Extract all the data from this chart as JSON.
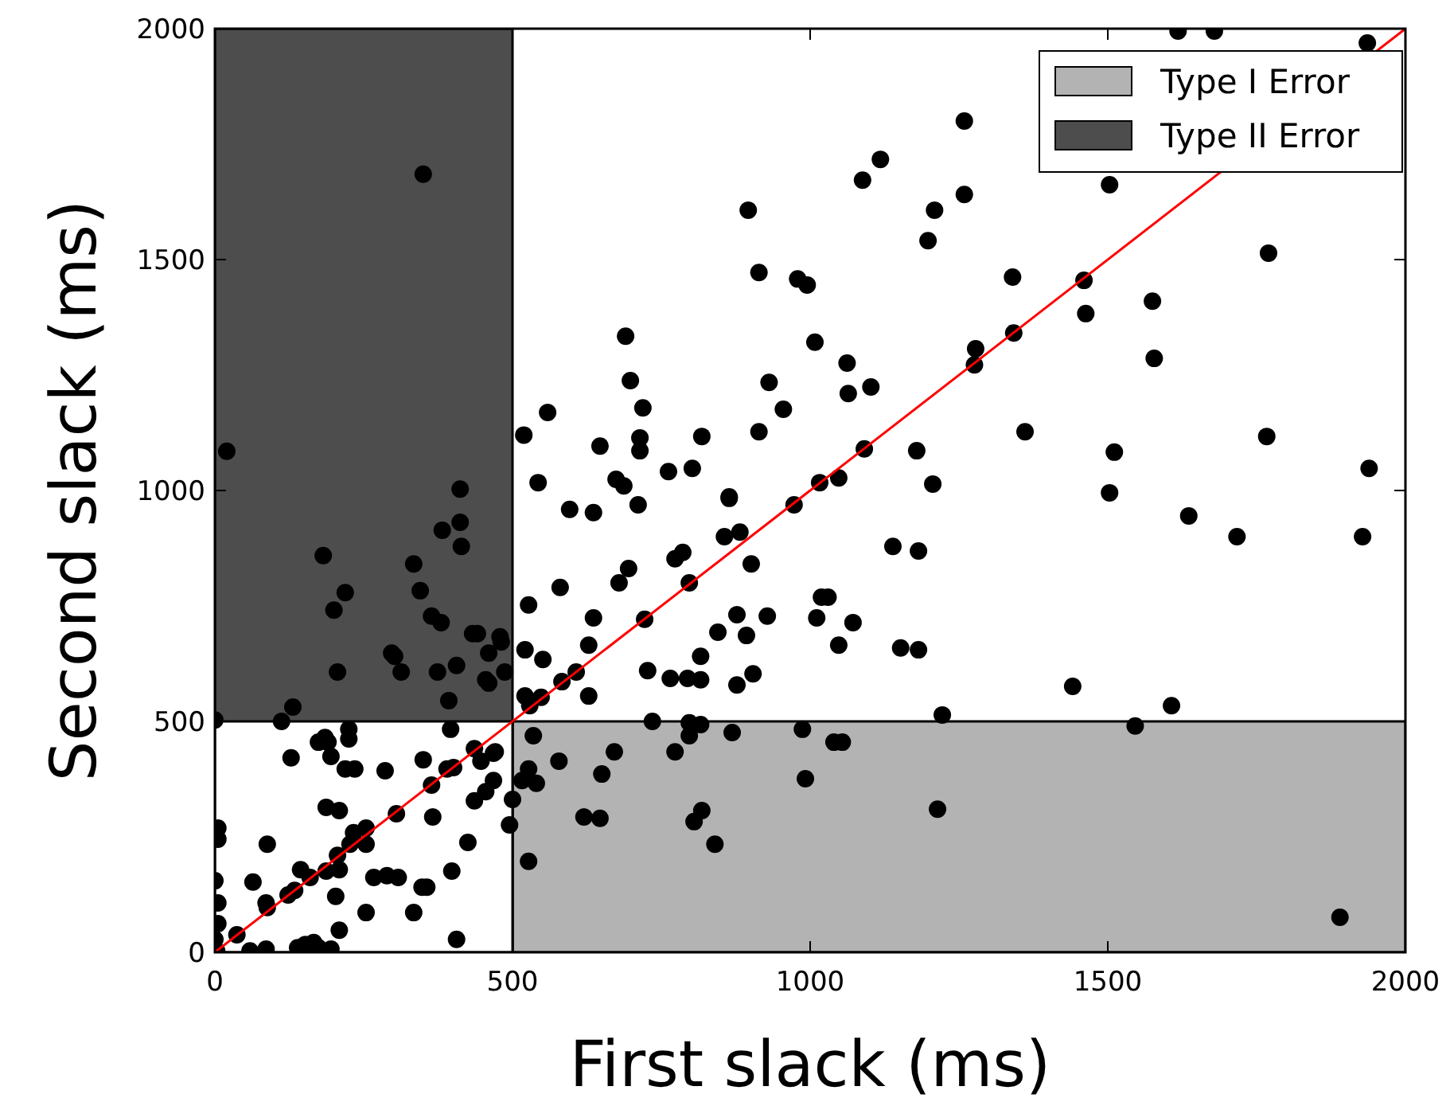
{
  "chart_data": {
    "type": "scatter",
    "xlabel": "First slack (ms)",
    "ylabel": "Second slack (ms)",
    "xlim": [
      0,
      2000
    ],
    "ylim": [
      0,
      2000
    ],
    "xticks": [
      0,
      500,
      1000,
      1500,
      2000
    ],
    "yticks": [
      0,
      500,
      1000,
      1500,
      2000
    ],
    "grid": false,
    "legend": "top right",
    "marker": "circle",
    "series": [
      {
        "type": "area",
        "name": "Type I Error",
        "color": "#b3b3b3",
        "marker": "none",
        "x": [
          500,
          2000
        ],
        "values": [
          500,
          500
        ]
      },
      {
        "type": "area",
        "name": "Type II Error",
        "color": "#4d4d4d",
        "marker": "none",
        "x": [
          0,
          500
        ],
        "values": [
          2000,
          2000
        ]
      },
      {
        "type": "area",
        "color": "#ffffff",
        "marker": "none",
        "x": [
          0,
          500
        ],
        "values": [
          500,
          500
        ]
      },
      {
        "type": "scatter",
        "color": "#000000",
        "x": [
          20,
          350,
          412,
          519,
          559,
          543,
          647,
          674,
          687,
          690,
          698,
          719,
          714,
          714,
          762,
          802,
          818,
          896,
          914,
          979,
          931,
          955,
          914,
          864,
          1618,
          1679,
          1936,
          1259,
          1118,
          1088,
          1259,
          1209,
          1198,
          1503,
          1770,
          1340,
          1460,
          1463,
          1575,
          1578,
          995,
          1008,
          1062,
          1064,
          1102,
          1278,
          1276,
          1342,
          1361,
          1179,
          1091,
          1206,
          1511,
          1503,
          1767,
          1939,
          1016,
          1048,
          1636,
          1717,
          1928,
          1139,
          1182,
          1072,
          1048,
          1152,
          1182,
          1030,
          1441,
          1607,
          1546,
          1222,
          1040,
          1054,
          1214,
          1890,
          596,
          636,
          711,
          864,
          856,
          882,
          973,
          773,
          786,
          695,
          679,
          797,
          901,
          580,
          527,
          636,
          722,
          845,
          877,
          893,
          928,
          1019,
          1011,
          628,
          551,
          521,
          816,
          727,
          765,
          794,
          816,
          877,
          904,
          628,
          583,
          607,
          521,
          529,
          548,
          735,
          797,
          816,
          797,
          869,
          987,
          992,
          535,
          671,
          578,
          773,
          650,
          527,
          516,
          540,
          620,
          647,
          805,
          818,
          840,
          527,
          500,
          495,
          468,
          468,
          455,
          481,
          460,
          487,
          455,
          441,
          412,
          382,
          414,
          182,
          334,
          219,
          200,
          345,
          364,
          380,
          433,
          479,
          297,
          302,
          313,
          206,
          374,
          406,
          460,
          393,
          131,
          112,
          0,
          225,
          225,
          396,
          185,
          190,
          174,
          128,
          195,
          219,
          235,
          286,
          350,
          364,
          390,
          401,
          436,
          447,
          471,
          436,
          187,
          209,
          305,
          366,
          88,
          233,
          254,
          227,
          254,
          206,
          425,
          398,
          144,
          160,
          187,
          209,
          123,
          134,
          64,
          86,
          88,
          267,
          289,
          308,
          203,
          356,
          348,
          254,
          334,
          209,
          406,
          37,
          0,
          5,
          5,
          0,
          5,
          5,
          59,
          86,
          139,
          152,
          166,
          174,
          195,
          3
        ],
        "values": [
          1085,
          1685,
          1003,
          1120,
          1169,
          1017,
          1096,
          1024,
          1010,
          1334,
          1238,
          1179,
          1114,
          1086,
          1041,
          1048,
          1117,
          1607,
          1472,
          1458,
          1234,
          1176,
          1127,
          986,
          1995,
          1995,
          1969,
          1800,
          1717,
          1672,
          1641,
          1607,
          1541,
          1662,
          1514,
          1462,
          1455,
          1383,
          1410,
          1286,
          1445,
          1321,
          1276,
          1210,
          1224,
          1307,
          1272,
          1341,
          1127,
          1086,
          1090,
          1014,
          1083,
          995,
          1117,
          1048,
          1017,
          1027,
          945,
          900,
          900,
          879,
          869,
          714,
          665,
          659,
          655,
          769,
          576,
          534,
          490,
          514,
          455,
          455,
          310,
          76,
          959,
          952,
          969,
          983,
          900,
          910,
          969,
          852,
          866,
          831,
          800,
          800,
          841,
          790,
          752,
          724,
          721,
          693,
          731,
          686,
          728,
          769,
          724,
          665,
          634,
          655,
          641,
          610,
          593,
          593,
          590,
          579,
          603,
          555,
          586,
          607,
          555,
          534,
          552,
          500,
          497,
          493,
          469,
          476,
          483,
          376,
          469,
          434,
          414,
          434,
          386,
          397,
          372,
          366,
          293,
          290,
          283,
          307,
          234,
          197,
          331,
          276,
          431,
          372,
          348,
          672,
          648,
          607,
          590,
          690,
          931,
          914,
          879,
          859,
          841,
          779,
          741,
          783,
          728,
          714,
          690,
          683,
          648,
          641,
          607,
          607,
          607,
          621,
          583,
          545,
          531,
          500,
          503,
          483,
          462,
          483,
          465,
          455,
          455,
          421,
          424,
          397,
          397,
          393,
          417,
          362,
          397,
          400,
          441,
          414,
          434,
          328,
          314,
          307,
          300,
          293,
          234,
          259,
          269,
          234,
          234,
          210,
          238,
          176,
          179,
          162,
          176,
          179,
          124,
          134,
          152,
          107,
          97,
          162,
          166,
          162,
          121,
          141,
          141,
          86,
          86,
          48,
          28,
          38,
          155,
          107,
          62,
          28,
          269,
          245,
          3,
          7,
          10,
          17,
          21,
          10,
          7,
          3
        ]
      },
      {
        "type": "line",
        "color": "#ff0000",
        "marker": "none",
        "x": [
          0,
          2000
        ],
        "values": [
          0,
          2000
        ]
      }
    ]
  }
}
